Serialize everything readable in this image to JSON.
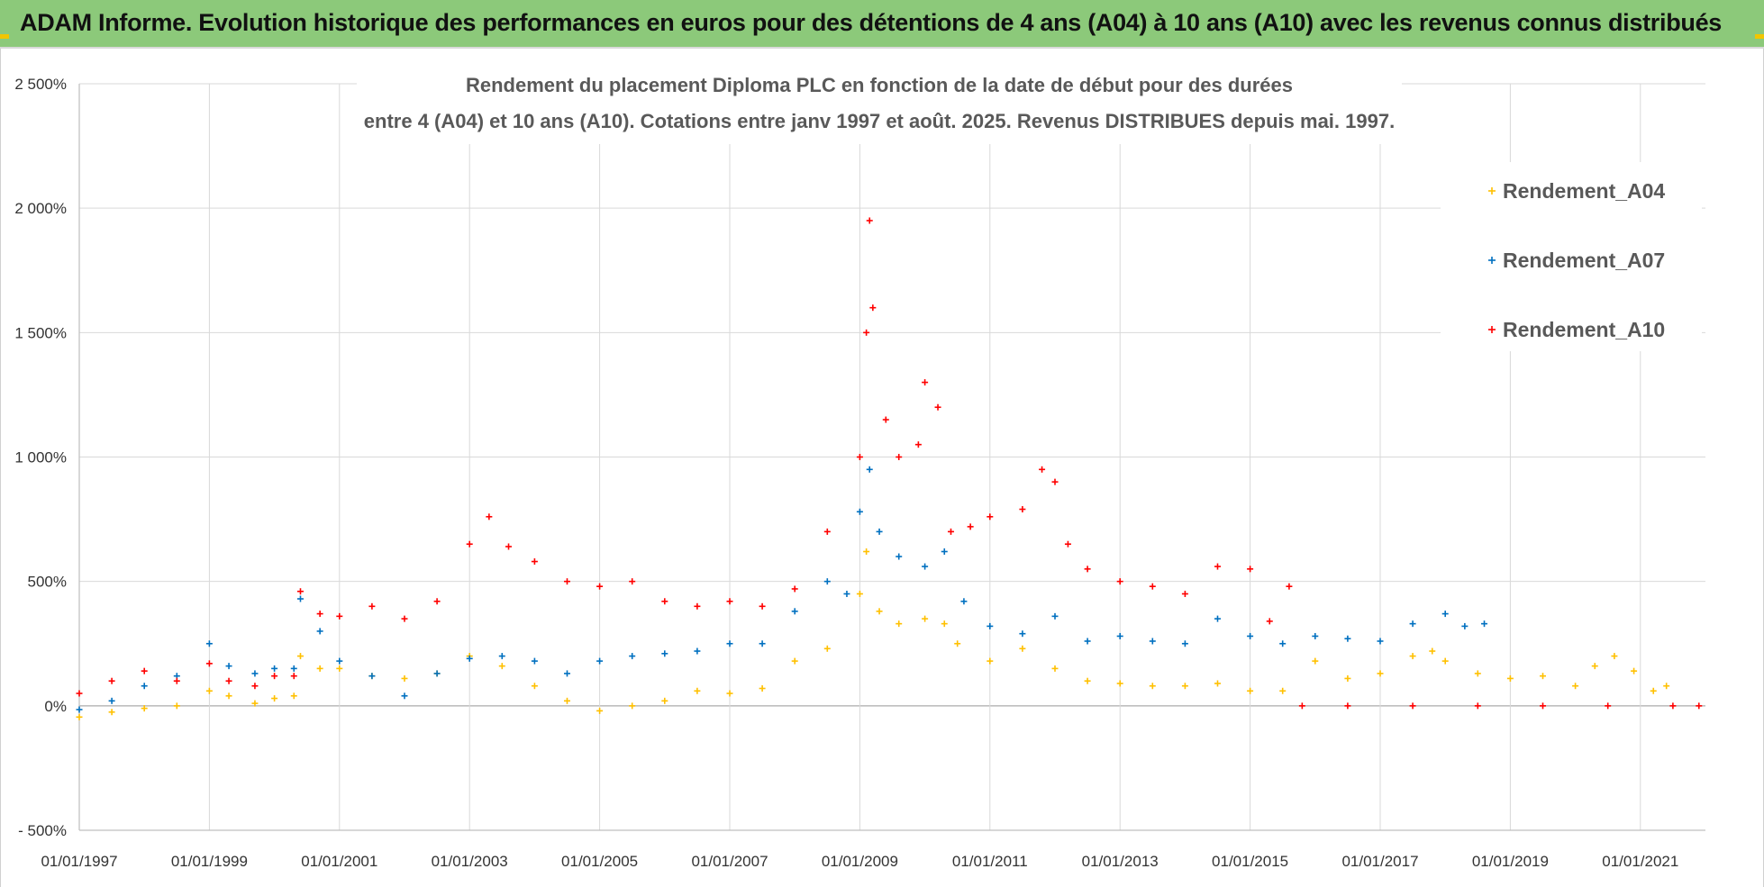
{
  "banner": {
    "title": "ADAM Informe. Evolution historique des performances en euros pour des détentions de 4 ans (A04) à 10 ans (A10) avec les revenus connus distribués"
  },
  "colors": {
    "banner_bg": "#8cc97a",
    "A04": "#ffc000",
    "A07": "#0070c0",
    "A10": "#ff0000",
    "grid": "#d9d9d9",
    "zero_line": "#bfbfbf"
  },
  "chart_data": {
    "type": "scatter",
    "title_line1": "Rendement du placement Diploma PLC en fonction de la date de début pour des durées",
    "title_line2": "entre 4 (A04) et 10 ans (A10).  Cotations entre janv 1997 et août. 2025. Revenus DISTRIBUES depuis mai. 1997.",
    "xlabel": "",
    "ylabel": "",
    "x_ticks": [
      "01/01/1997",
      "01/01/1999",
      "01/01/2001",
      "01/01/2003",
      "01/01/2005",
      "01/01/2007",
      "01/01/2009",
      "01/01/2011",
      "01/01/2013",
      "01/01/2015",
      "01/01/2017",
      "01/01/2019",
      "01/01/2021"
    ],
    "y_ticks": [
      "- 500%",
      "0%",
      "500%",
      "1 000%",
      "1 500%",
      "2 000%",
      "2 500%"
    ],
    "y_tick_values": [
      -500,
      0,
      500,
      1000,
      1500,
      2000,
      2500
    ],
    "xlim": [
      1997.0,
      2022.0
    ],
    "ylim": [
      -500,
      2500
    ],
    "grid": true,
    "legend_position": "top-right",
    "marker": "+",
    "series": [
      {
        "name": "Rendement_A04",
        "color": "#ffc000",
        "points": [
          [
            1997.0,
            -45
          ],
          [
            1997.5,
            -25
          ],
          [
            1998.0,
            -10
          ],
          [
            1998.5,
            0
          ],
          [
            1999.0,
            60
          ],
          [
            1999.3,
            40
          ],
          [
            1999.7,
            10
          ],
          [
            2000.0,
            30
          ],
          [
            2000.3,
            40
          ],
          [
            2000.4,
            200
          ],
          [
            2000.7,
            150
          ],
          [
            2001.0,
            150
          ],
          [
            2001.5,
            120
          ],
          [
            2002.0,
            110
          ],
          [
            2002.5,
            130
          ],
          [
            2003.0,
            200
          ],
          [
            2003.5,
            160
          ],
          [
            2004.0,
            80
          ],
          [
            2004.5,
            20
          ],
          [
            2005.0,
            -20
          ],
          [
            2005.5,
            0
          ],
          [
            2006.0,
            20
          ],
          [
            2006.5,
            60
          ],
          [
            2007.0,
            50
          ],
          [
            2007.5,
            70
          ],
          [
            2008.0,
            180
          ],
          [
            2008.5,
            230
          ],
          [
            2009.0,
            450
          ],
          [
            2009.1,
            620
          ],
          [
            2009.3,
            380
          ],
          [
            2009.6,
            330
          ],
          [
            2010.0,
            350
          ],
          [
            2010.3,
            330
          ],
          [
            2010.5,
            250
          ],
          [
            2011.0,
            180
          ],
          [
            2011.5,
            230
          ],
          [
            2012.0,
            150
          ],
          [
            2012.5,
            100
          ],
          [
            2013.0,
            90
          ],
          [
            2013.5,
            80
          ],
          [
            2014.0,
            80
          ],
          [
            2014.5,
            90
          ],
          [
            2015.0,
            60
          ],
          [
            2015.5,
            60
          ],
          [
            2016.0,
            180
          ],
          [
            2016.5,
            110
          ],
          [
            2017.0,
            130
          ],
          [
            2017.5,
            200
          ],
          [
            2017.8,
            220
          ],
          [
            2018.0,
            180
          ],
          [
            2018.5,
            130
          ],
          [
            2019.0,
            110
          ],
          [
            2019.5,
            120
          ],
          [
            2020.0,
            80
          ],
          [
            2020.3,
            160
          ],
          [
            2020.6,
            200
          ],
          [
            2020.9,
            140
          ],
          [
            2021.2,
            60
          ],
          [
            2021.4,
            80
          ]
        ]
      },
      {
        "name": "Rendement_A07",
        "color": "#0070c0",
        "points": [
          [
            1997.0,
            -15
          ],
          [
            1997.5,
            20
          ],
          [
            1998.0,
            80
          ],
          [
            1998.5,
            120
          ],
          [
            1999.0,
            250
          ],
          [
            1999.3,
            160
          ],
          [
            1999.7,
            130
          ],
          [
            2000.0,
            150
          ],
          [
            2000.3,
            150
          ],
          [
            2000.4,
            430
          ],
          [
            2000.7,
            300
          ],
          [
            2001.0,
            180
          ],
          [
            2001.5,
            120
          ],
          [
            2002.0,
            40
          ],
          [
            2002.5,
            130
          ],
          [
            2003.0,
            190
          ],
          [
            2003.5,
            200
          ],
          [
            2004.0,
            180
          ],
          [
            2004.5,
            130
          ],
          [
            2005.0,
            180
          ],
          [
            2005.5,
            200
          ],
          [
            2006.0,
            210
          ],
          [
            2006.5,
            220
          ],
          [
            2007.0,
            250
          ],
          [
            2007.5,
            250
          ],
          [
            2008.0,
            380
          ],
          [
            2008.5,
            500
          ],
          [
            2008.8,
            450
          ],
          [
            2009.0,
            780
          ],
          [
            2009.15,
            950
          ],
          [
            2009.3,
            700
          ],
          [
            2009.6,
            600
          ],
          [
            2010.0,
            560
          ],
          [
            2010.3,
            620
          ],
          [
            2010.6,
            420
          ],
          [
            2011.0,
            320
          ],
          [
            2011.5,
            290
          ],
          [
            2012.0,
            360
          ],
          [
            2012.5,
            260
          ],
          [
            2013.0,
            280
          ],
          [
            2013.5,
            260
          ],
          [
            2014.0,
            250
          ],
          [
            2014.5,
            350
          ],
          [
            2015.0,
            280
          ],
          [
            2015.5,
            250
          ],
          [
            2016.0,
            280
          ],
          [
            2016.5,
            270
          ],
          [
            2017.0,
            260
          ],
          [
            2017.5,
            330
          ],
          [
            2018.0,
            370
          ],
          [
            2018.3,
            320
          ],
          [
            2018.6,
            330
          ]
        ]
      },
      {
        "name": "Rendement_A10",
        "color": "#ff0000",
        "points": [
          [
            1997.0,
            50
          ],
          [
            1997.5,
            100
          ],
          [
            1998.0,
            140
          ],
          [
            1998.5,
            100
          ],
          [
            1999.0,
            170
          ],
          [
            1999.3,
            100
          ],
          [
            1999.7,
            80
          ],
          [
            2000.0,
            120
          ],
          [
            2000.3,
            120
          ],
          [
            2000.4,
            460
          ],
          [
            2000.7,
            370
          ],
          [
            2001.0,
            360
          ],
          [
            2001.5,
            400
          ],
          [
            2002.0,
            350
          ],
          [
            2002.5,
            420
          ],
          [
            2003.0,
            650
          ],
          [
            2003.3,
            760
          ],
          [
            2003.6,
            640
          ],
          [
            2004.0,
            580
          ],
          [
            2004.5,
            500
          ],
          [
            2005.0,
            480
          ],
          [
            2005.5,
            500
          ],
          [
            2006.0,
            420
          ],
          [
            2006.5,
            400
          ],
          [
            2007.0,
            420
          ],
          [
            2007.5,
            400
          ],
          [
            2008.0,
            470
          ],
          [
            2008.5,
            700
          ],
          [
            2009.0,
            1000
          ],
          [
            2009.1,
            1500
          ],
          [
            2009.15,
            1950
          ],
          [
            2009.2,
            1600
          ],
          [
            2009.4,
            1150
          ],
          [
            2009.6,
            1000
          ],
          [
            2009.9,
            1050
          ],
          [
            2010.0,
            1300
          ],
          [
            2010.2,
            1200
          ],
          [
            2010.4,
            700
          ],
          [
            2010.7,
            720
          ],
          [
            2011.0,
            760
          ],
          [
            2011.5,
            790
          ],
          [
            2011.8,
            950
          ],
          [
            2012.0,
            900
          ],
          [
            2012.2,
            650
          ],
          [
            2012.5,
            550
          ],
          [
            2013.0,
            500
          ],
          [
            2013.5,
            480
          ],
          [
            2014.0,
            450
          ],
          [
            2014.5,
            560
          ],
          [
            2015.0,
            550
          ],
          [
            2015.3,
            340
          ],
          [
            2015.6,
            480
          ],
          [
            2015.8,
            0
          ],
          [
            2016.5,
            0
          ],
          [
            2017.5,
            0
          ],
          [
            2018.5,
            0
          ],
          [
            2019.5,
            0
          ],
          [
            2020.5,
            0
          ],
          [
            2021.5,
            0
          ],
          [
            2021.9,
            0
          ]
        ]
      }
    ]
  }
}
